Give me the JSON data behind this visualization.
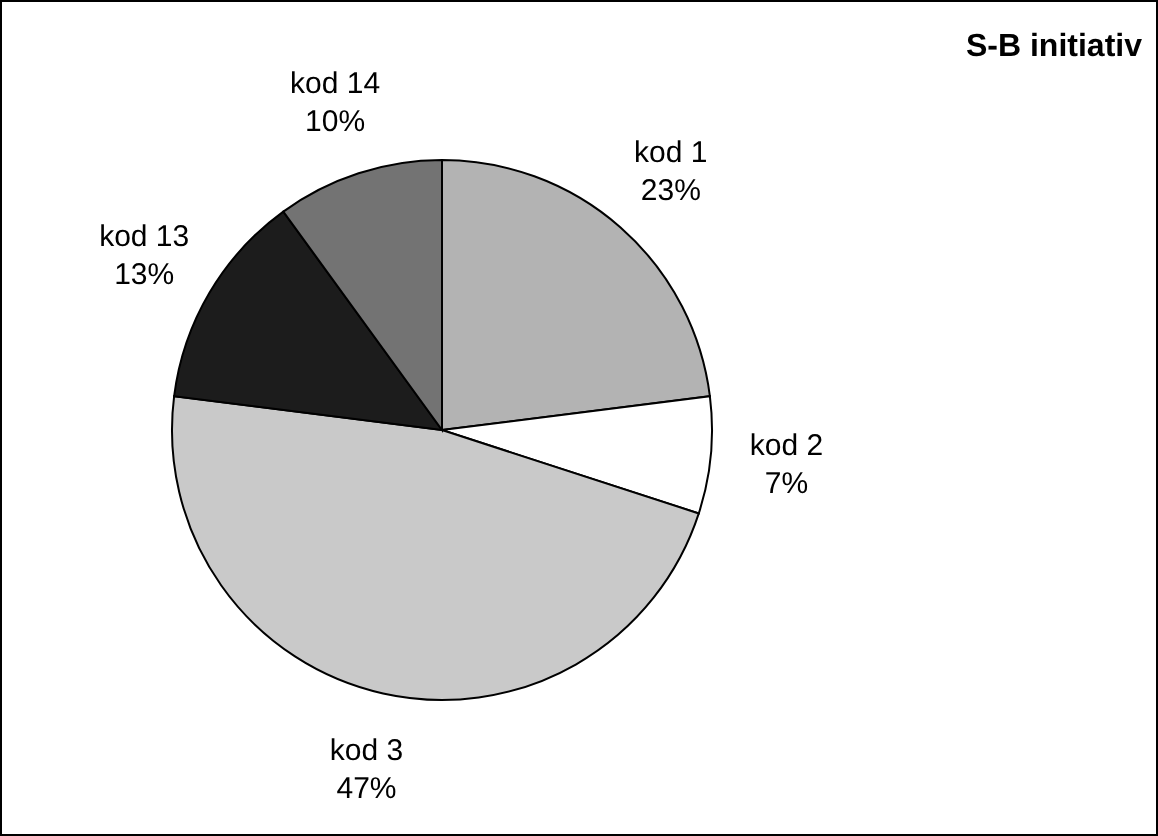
{
  "chart_data": {
    "type": "pie",
    "title": "S-B initiativ",
    "categories": [
      "kod 1",
      "kod 2",
      "kod 3",
      "kod 13",
      "kod 14"
    ],
    "values": [
      23,
      7,
      47,
      13,
      10
    ],
    "value_labels": [
      "23%",
      "7%",
      "47%",
      "13%",
      "10%"
    ],
    "colors": [
      "#b3b3b3",
      "#ffffff",
      "#c9c9c9",
      "#1c1c1c",
      "#737373"
    ]
  }
}
